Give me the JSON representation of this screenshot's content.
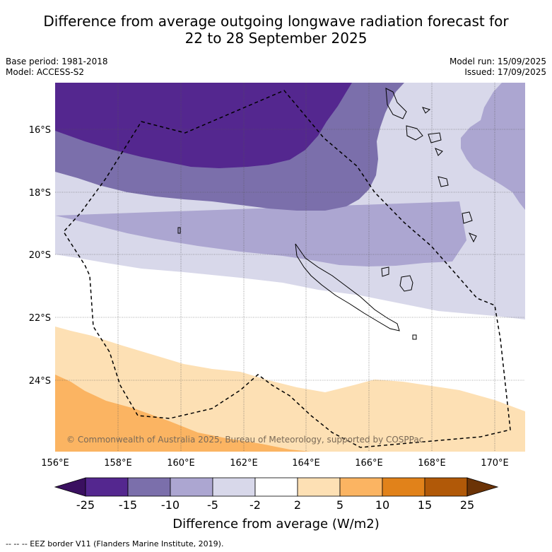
{
  "title_line1": "Difference from average outgoing longwave radiation forecast for",
  "title_line2": "22 to 28 September 2025",
  "meta": {
    "base_period": "Base period: 1981-2018",
    "model": "Model: ACCESS-S2",
    "model_run": "Model run: 15/09/2025",
    "issued": "Issued: 17/09/2025"
  },
  "map": {
    "lon_labels": [
      "156°E",
      "158°E",
      "160°E",
      "162°E",
      "164°E",
      "166°E",
      "168°E",
      "170°E"
    ],
    "lat_labels": [
      "16°S",
      "18°S",
      "20°S",
      "22°S",
      "24°S"
    ],
    "copyright": "© Commonwealth of Australia 2025, Bureau of Meteorology, supported by COSPPac"
  },
  "colorbar": {
    "ticks": [
      "-25",
      "-15",
      "-10",
      "-5",
      "-2",
      "2",
      "5",
      "10",
      "15",
      "25"
    ],
    "colors": {
      "low_extend": "#3a1060",
      "c1": "#54278f",
      "c2": "#7b6fab",
      "c3": "#aca6d1",
      "c4": "#d8d8ea",
      "c5": "#ffffff",
      "c6": "#fde0b4",
      "c7": "#fbb462",
      "c8": "#e1821a",
      "c9": "#b15908",
      "high_extend": "#6b3306"
    },
    "label": "Difference from average (W/m2)"
  },
  "footer": "--  --  -- EEZ border V11 (Flanders Marine Institute, 2019)."
}
